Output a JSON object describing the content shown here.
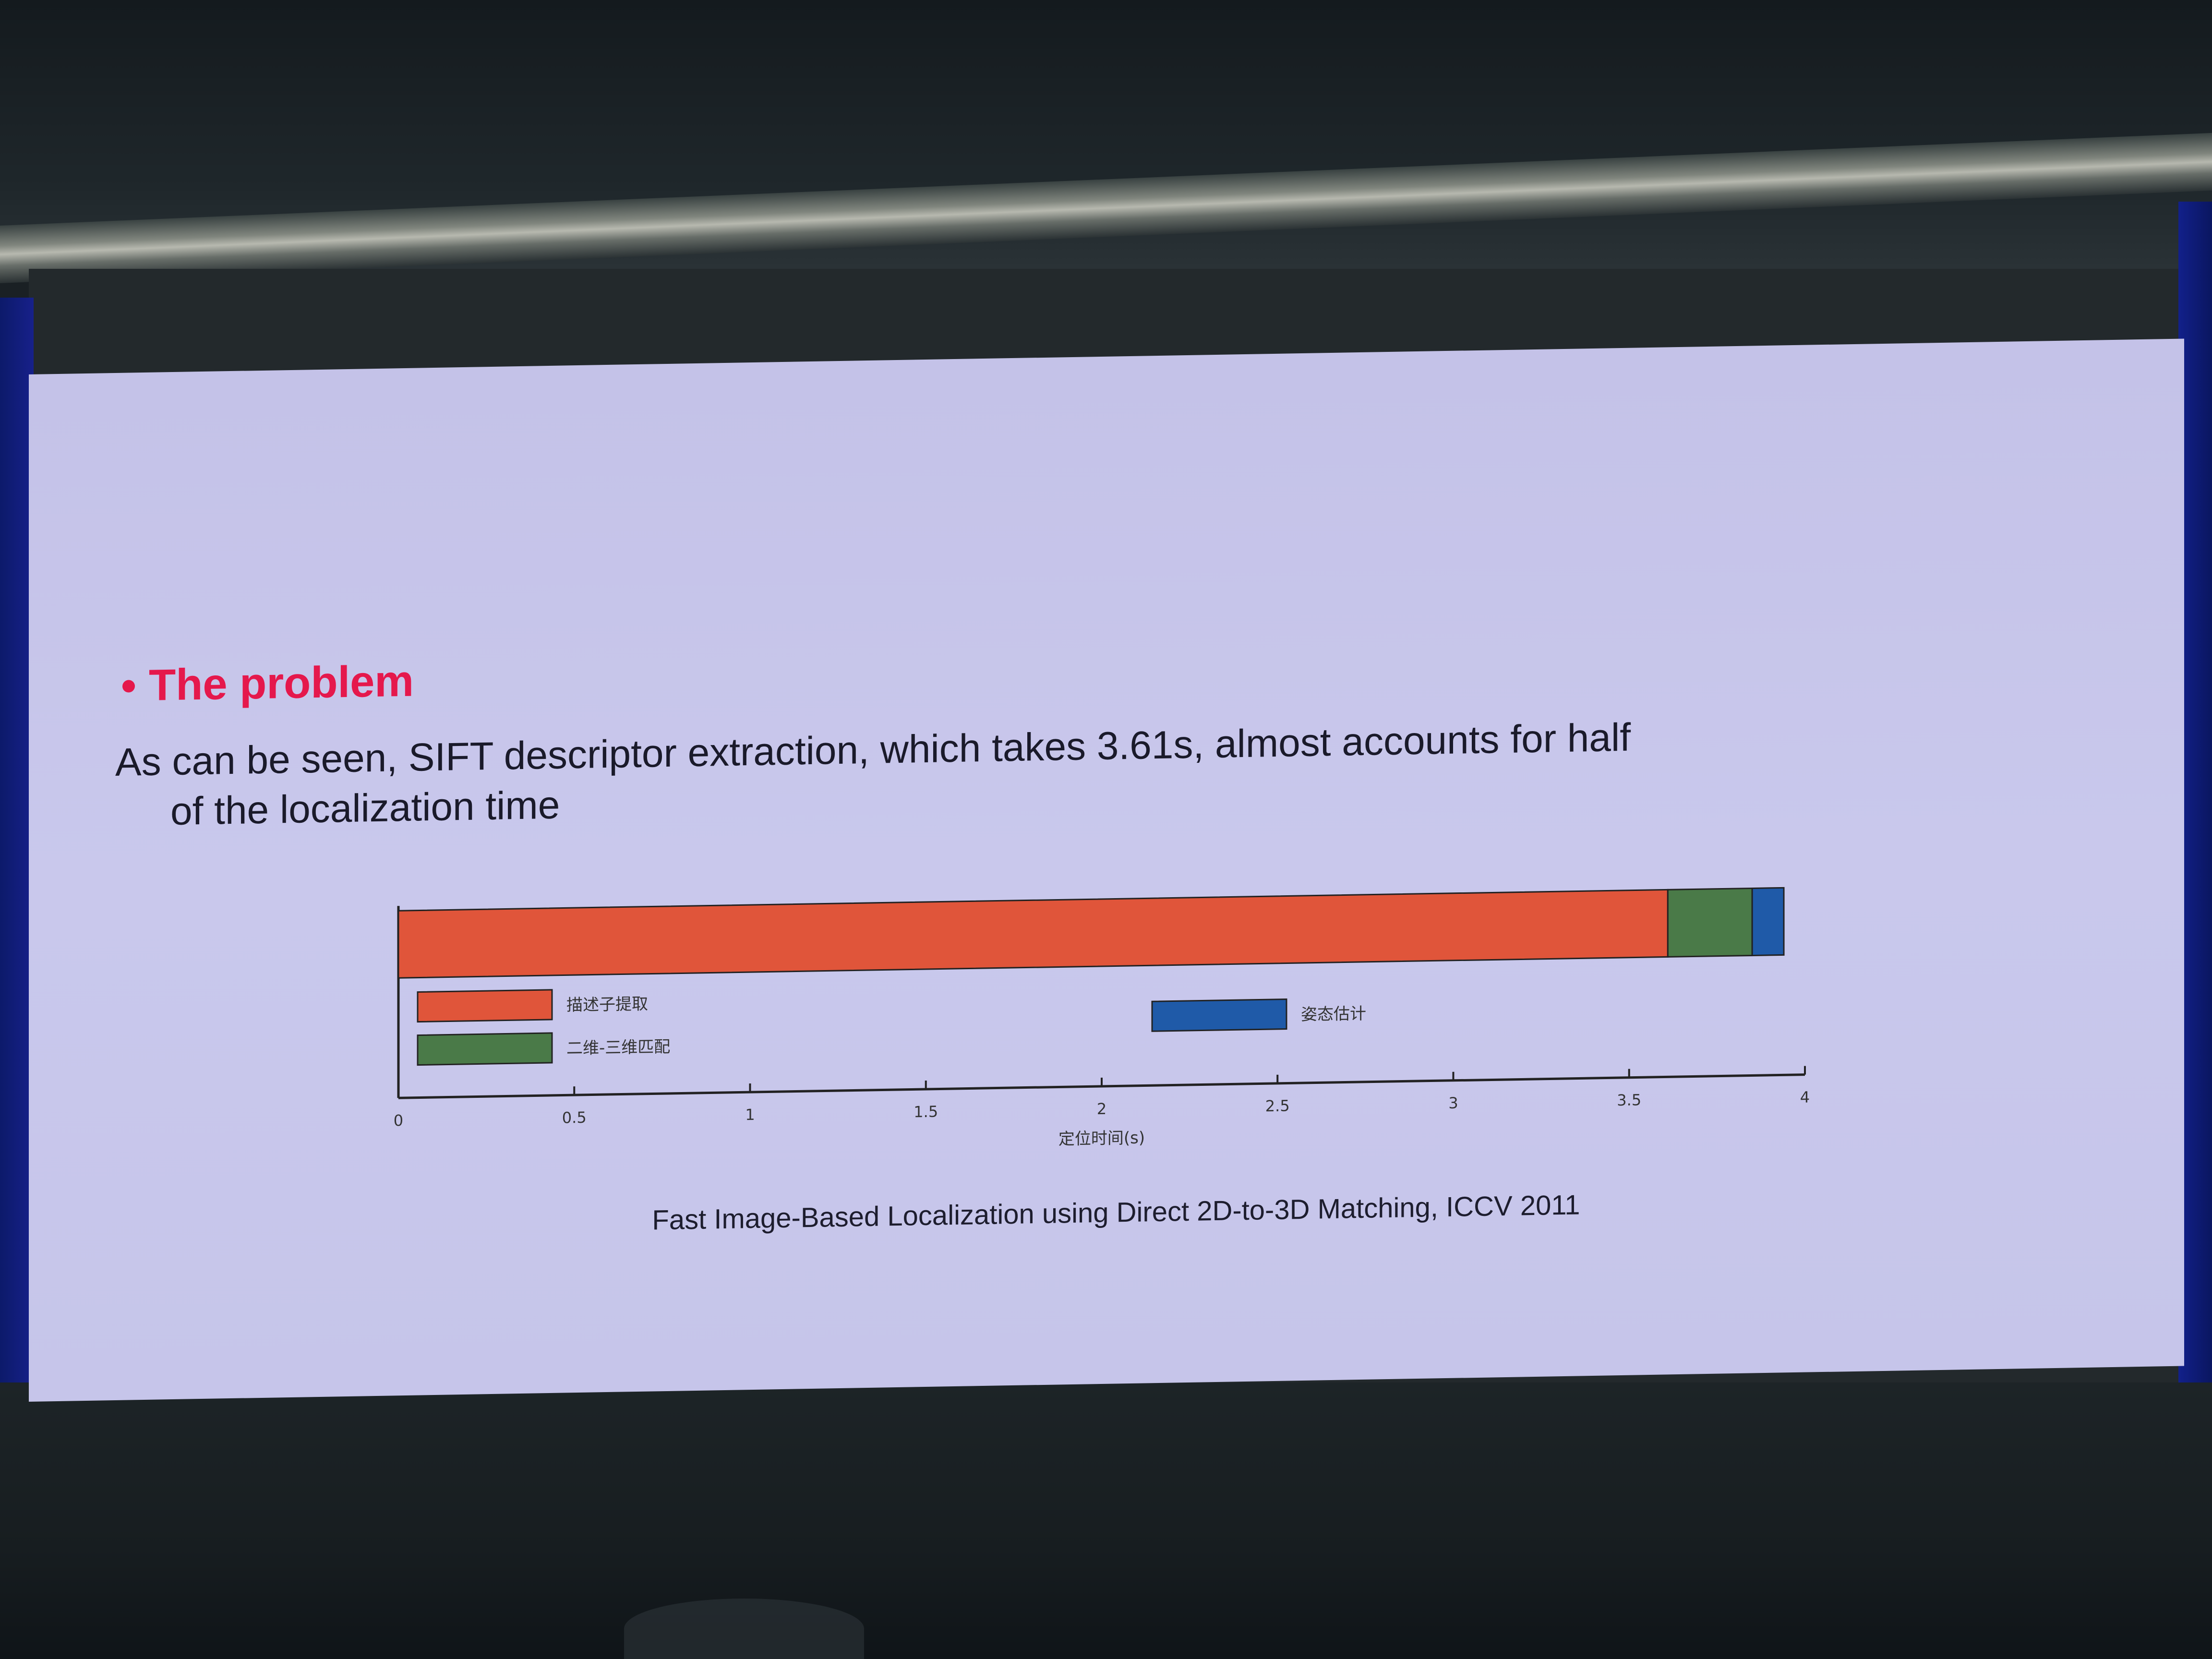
{
  "slide": {
    "title": "The problem",
    "body_line1": "As can be seen, SIFT descriptor extraction, which takes 3.61s, almost accounts for half",
    "body_line2": "of the localization time",
    "caption": "Fast Image-Based Localization using Direct 2D-to-3D Matching, ICCV 2011",
    "accent_color": "#e5184c"
  },
  "chart_data": {
    "type": "bar",
    "orientation": "horizontal",
    "stacked": true,
    "xlabel": "定位时间(s)",
    "xlim": [
      0,
      4
    ],
    "xticks": [
      "0",
      "0.5",
      "1",
      "1.5",
      "2",
      "2.5",
      "3",
      "3.5",
      "4"
    ],
    "series": [
      {
        "name": "描述子提取",
        "value": 3.61,
        "color": "#e0553a"
      },
      {
        "name": "二维-三维匹配",
        "value": 0.24,
        "color": "#4a7a48"
      },
      {
        "name": "姿态估计",
        "value": 0.09,
        "color": "#1f5aa8"
      }
    ],
    "legend": "inside-bottom"
  }
}
